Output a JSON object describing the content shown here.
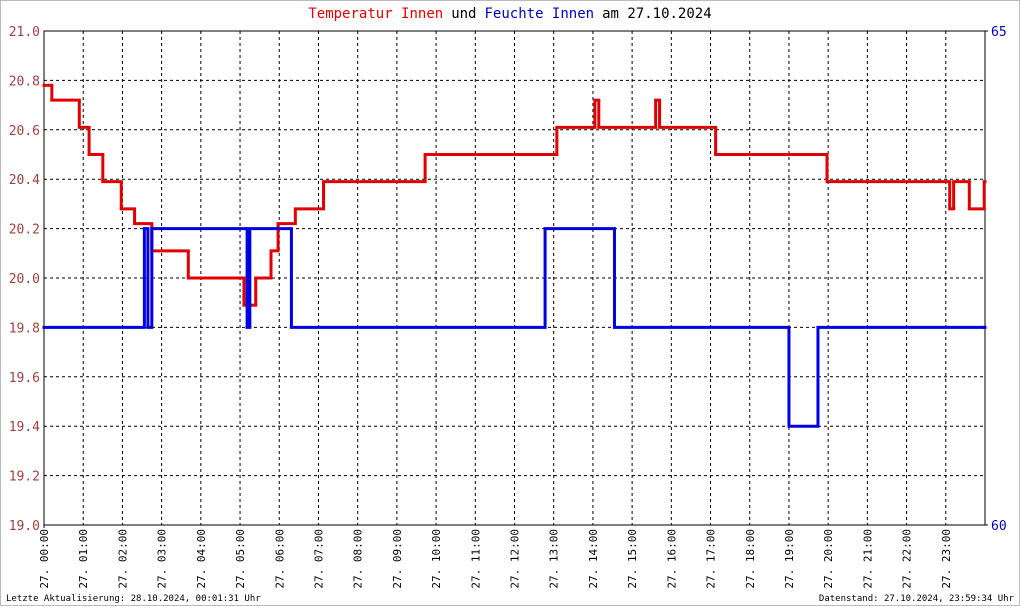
{
  "chart_data": {
    "type": "step",
    "title": [
      {
        "text": "Temperatur Innen",
        "color": "#e00000"
      },
      {
        "text": "und",
        "color": "#000000"
      },
      {
        "text": "Feuchte Innen",
        "color": "#0000c0"
      },
      {
        "text": "am 27.10.2024",
        "color": "#000000"
      }
    ],
    "footer_left": "Letzte Aktualisierung: 28.10.2024, 00:01:31 Uhr",
    "footer_right": "Datenstand: 27.10.2024, 23:59:34 Uhr",
    "grid": true,
    "xlim": [
      0,
      24
    ],
    "xticks": [
      {
        "value": 0,
        "label": "27. 00:00"
      },
      {
        "value": 1,
        "label": "27. 01:00"
      },
      {
        "value": 2,
        "label": "27. 02:00"
      },
      {
        "value": 3,
        "label": "27. 03:00"
      },
      {
        "value": 4,
        "label": "27. 04:00"
      },
      {
        "value": 5,
        "label": "27. 05:00"
      },
      {
        "value": 6,
        "label": "27. 06:00"
      },
      {
        "value": 7,
        "label": "27. 07:00"
      },
      {
        "value": 8,
        "label": "27. 08:00"
      },
      {
        "value": 9,
        "label": "27. 09:00"
      },
      {
        "value": 10,
        "label": "27. 10:00"
      },
      {
        "value": 11,
        "label": "27. 11:00"
      },
      {
        "value": 12,
        "label": "27. 12:00"
      },
      {
        "value": 13,
        "label": "27. 13:00"
      },
      {
        "value": 14,
        "label": "27. 14:00"
      },
      {
        "value": 15,
        "label": "27. 15:00"
      },
      {
        "value": 16,
        "label": "27. 16:00"
      },
      {
        "value": 17,
        "label": "27. 17:00"
      },
      {
        "value": 18,
        "label": "27. 18:00"
      },
      {
        "value": 19,
        "label": "27. 19:00"
      },
      {
        "value": 20,
        "label": "27. 20:00"
      },
      {
        "value": 21,
        "label": "27. 21:00"
      },
      {
        "value": 22,
        "label": "27. 22:00"
      },
      {
        "value": 23,
        "label": "27. 23:00"
      }
    ],
    "ylim": [
      19.0,
      21.0
    ],
    "yticks": [
      {
        "value": 19.0,
        "label": "19.0"
      },
      {
        "value": 19.2,
        "label": "19.2"
      },
      {
        "value": 19.4,
        "label": "19.4"
      },
      {
        "value": 19.6,
        "label": "19.6"
      },
      {
        "value": 19.8,
        "label": "19.8"
      },
      {
        "value": 20.0,
        "label": "20.0"
      },
      {
        "value": 20.2,
        "label": "20.2"
      },
      {
        "value": 20.4,
        "label": "20.4"
      },
      {
        "value": 20.6,
        "label": "20.6"
      },
      {
        "value": 20.8,
        "label": "20.8"
      },
      {
        "value": 21.0,
        "label": "21.0"
      }
    ],
    "y2lim": [
      60,
      65
    ],
    "y2ticks": [
      60,
      65
    ],
    "series": [
      {
        "name": "Temperatur Innen",
        "color": "#e00000",
        "x": [
          0,
          0.2,
          0.9,
          1.15,
          1.5,
          1.97,
          2.31,
          2.75,
          3.68,
          5.1,
          5.4,
          5.79,
          5.97,
          6.41,
          7.13,
          9.72,
          13.08,
          14.05,
          14.15,
          15.6,
          15.7,
          17.13,
          19.97,
          23.1,
          23.2,
          23.6,
          23.98
        ],
        "values": [
          20.78,
          20.72,
          20.61,
          20.5,
          20.39,
          20.28,
          20.22,
          20.11,
          20.0,
          19.89,
          20.0,
          20.11,
          20.22,
          20.28,
          20.39,
          20.5,
          20.61,
          20.72,
          20.61,
          20.72,
          20.61,
          20.5,
          20.39,
          20.28,
          20.39,
          20.28,
          20.39
        ]
      },
      {
        "name": "Feuchte Innen",
        "color": "#0000e0",
        "axis": "y2",
        "x": [
          0,
          2.56,
          2.65,
          2.75,
          5.18,
          5.25,
          6.31,
          12.78,
          14.55,
          19.0,
          19.74,
          23.98
        ],
        "values": [
          62,
          63,
          62,
          63,
          62,
          63,
          62,
          63,
          62,
          61,
          62,
          62
        ]
      }
    ]
  }
}
